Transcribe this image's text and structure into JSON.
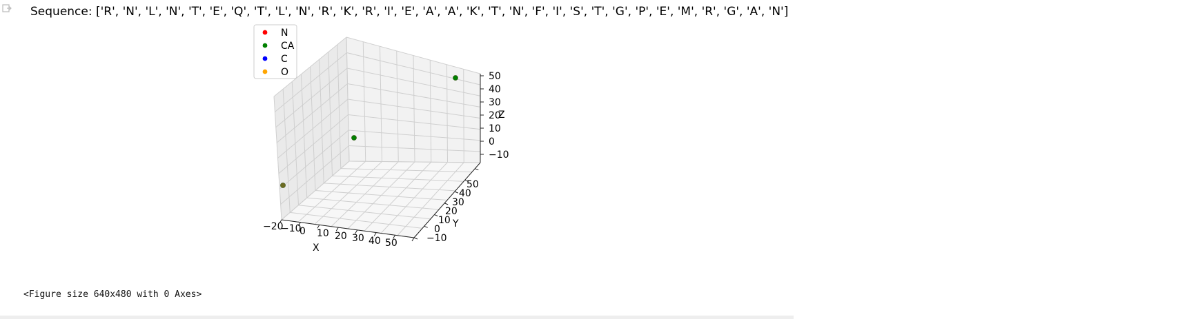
{
  "output": {
    "sequence_text": "Sequence: ['R', 'N', 'L', 'N', 'T', 'E', 'Q', 'T', 'L', 'N', 'R', 'K', 'R', 'I', 'E', 'A', 'A', 'K', 'T', 'N', 'F', 'I', 'S', 'T', 'G', 'P', 'E', 'M', 'R', 'G', 'A', 'N']",
    "figure_size_text": "<Figure size 640x480 with 0 Axes>",
    "icons": {
      "prompt": "output-prompt-icon"
    }
  },
  "chart_data": {
    "type": "scatter",
    "projection": "3d",
    "xlabel": "X",
    "ylabel": "Y",
    "zlabel": "Z",
    "x_ticks": [
      "−20",
      "−10",
      "0",
      "10",
      "20",
      "30",
      "40",
      "50"
    ],
    "y_ticks": [
      "−10",
      "0",
      "10",
      "20",
      "30",
      "40",
      "50"
    ],
    "z_ticks": [
      "−10",
      "0",
      "10",
      "20",
      "30",
      "40",
      "50"
    ],
    "grid": true,
    "legend_position": "upper-left",
    "legend": [
      {
        "name": "N",
        "color": "#ff0000"
      },
      {
        "name": "CA",
        "color": "#008000"
      },
      {
        "name": "C",
        "color": "#0000ff"
      },
      {
        "name": "O",
        "color": "#ffa500"
      }
    ],
    "points": [
      {
        "series": "CA",
        "x": -18,
        "y": -12,
        "z": 0
      },
      {
        "series": "CA",
        "x": 8,
        "y": 30,
        "z": -5
      },
      {
        "series": "CA",
        "x": 50,
        "y": 50,
        "z": 48
      }
    ]
  }
}
